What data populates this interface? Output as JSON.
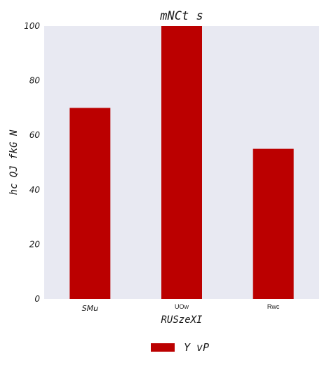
{
  "chart_data": {
    "type": "bar",
    "title": "mNCt s",
    "xlabel": "RUSzeXI",
    "ylabel": "hc  QJ  fkG N",
    "categories": [
      "SMu",
      "UOw",
      "Rwc"
    ],
    "series": [
      {
        "name": "Y vP",
        "values": [
          70,
          100,
          55
        ]
      }
    ],
    "ylim": [
      0,
      100
    ],
    "yticks": [
      0,
      20,
      40,
      60,
      80,
      100
    ],
    "grid": false,
    "legend": "bottom-center",
    "colors": {
      "bar": "#bb0000",
      "plot_background": "#e8e9f2"
    }
  }
}
